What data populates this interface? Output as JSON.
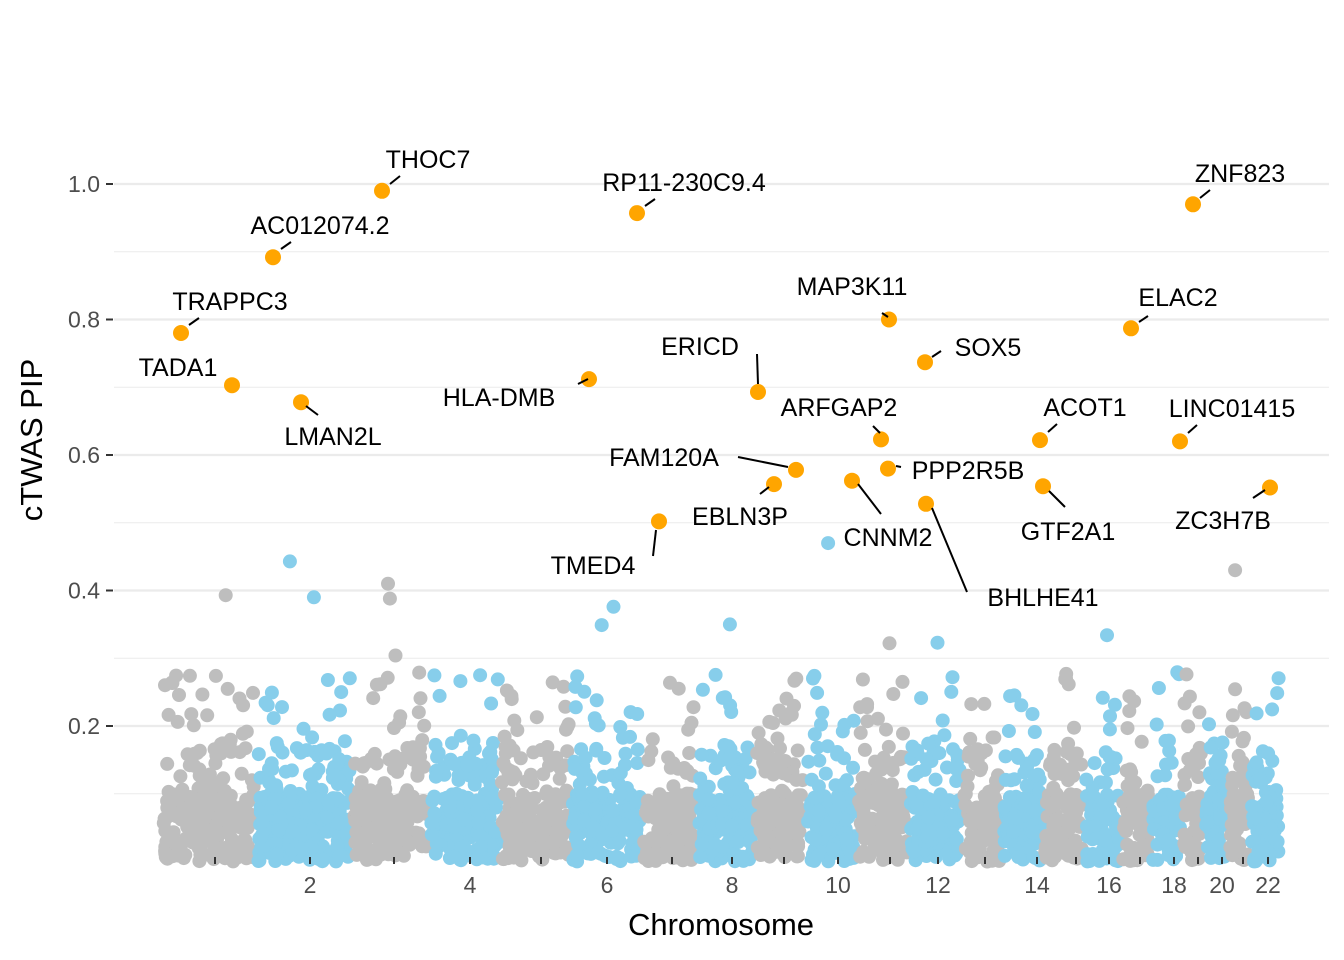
{
  "chart_data": {
    "type": "scatter",
    "title": "",
    "xlabel": "Chromosome",
    "ylabel": "cTWAS PIP",
    "ylim": [
      0,
      1.0
    ],
    "y_ticks": [
      0.2,
      0.4,
      0.6,
      0.8,
      1.0
    ],
    "y_tick_labels": [
      "0.2",
      "0.4",
      "0.6",
      "0.8",
      "1.0"
    ],
    "x_tick_labels": [
      "",
      "2",
      "",
      "4",
      "",
      "6",
      "",
      "8",
      "",
      "10",
      "",
      "12",
      "",
      "14",
      "",
      "16",
      "",
      "18",
      "",
      "20",
      "",
      "22"
    ],
    "grid": true,
    "legend": "none",
    "colors": {
      "odd_chromosome": "#bebebe",
      "even_chromosome": "#87ceeb",
      "highlighted": "#ffa500"
    },
    "chromosomes": [
      1,
      2,
      3,
      4,
      5,
      6,
      7,
      8,
      9,
      10,
      11,
      12,
      13,
      14,
      15,
      16,
      17,
      18,
      19,
      20,
      21,
      22
    ],
    "highlighted_genes": [
      {
        "gene": "THOC7",
        "chr": 3,
        "pip": 0.99
      },
      {
        "gene": "RP11-230C9.4",
        "chr": 6,
        "pip": 0.957
      },
      {
        "gene": "ZNF823",
        "chr": 19,
        "pip": 0.97
      },
      {
        "gene": "AC012074.2",
        "chr": 2,
        "pip": 0.892
      },
      {
        "gene": "TRAPPC3",
        "chr": 1,
        "pip": 0.78
      },
      {
        "gene": "TADA1",
        "chr": 1,
        "pip": 0.703
      },
      {
        "gene": "LMAN2L",
        "chr": 2,
        "pip": 0.678
      },
      {
        "gene": "HLA-DMB",
        "chr": 6,
        "pip": 0.712
      },
      {
        "gene": "ERICD",
        "chr": 8,
        "pip": 0.693
      },
      {
        "gene": "MAP3K11",
        "chr": 11,
        "pip": 0.8
      },
      {
        "gene": "SOX5",
        "chr": 12,
        "pip": 0.737
      },
      {
        "gene": "ELAC2",
        "chr": 17,
        "pip": 0.787
      },
      {
        "gene": "ARFGAP2",
        "chr": 11,
        "pip": 0.623
      },
      {
        "gene": "ACOT1",
        "chr": 14,
        "pip": 0.622
      },
      {
        "gene": "LINC01415",
        "chr": 18,
        "pip": 0.62
      },
      {
        "gene": "FAM120A",
        "chr": 9,
        "pip": 0.578
      },
      {
        "gene": "PPP2R5B",
        "chr": 11,
        "pip": 0.58
      },
      {
        "gene": "EBLN3P",
        "chr": 9,
        "pip": 0.557
      },
      {
        "gene": "CNNM2",
        "chr": 10,
        "pip": 0.562
      },
      {
        "gene": "GTF2A1",
        "chr": 14,
        "pip": 0.554
      },
      {
        "gene": "ZC3H7B",
        "chr": 22,
        "pip": 0.552
      },
      {
        "gene": "BHLHE41",
        "chr": 12,
        "pip": 0.528
      },
      {
        "gene": "TMED4",
        "chr": 7,
        "pip": 0.502
      }
    ],
    "notable_background_points": [
      {
        "chr": 2,
        "pip": 0.443
      },
      {
        "chr": 3,
        "pip": 0.41
      },
      {
        "chr": 3,
        "pip": 0.388
      },
      {
        "chr": 1,
        "pip": 0.393
      },
      {
        "chr": 2,
        "pip": 0.39
      },
      {
        "chr": 6,
        "pip": 0.376
      },
      {
        "chr": 6,
        "pip": 0.349
      },
      {
        "chr": 8,
        "pip": 0.35
      },
      {
        "chr": 10,
        "pip": 0.47
      },
      {
        "chr": 21,
        "pip": 0.43
      },
      {
        "chr": 16,
        "pip": 0.334
      },
      {
        "chr": 12,
        "pip": 0.323
      },
      {
        "chr": 11,
        "pip": 0.322
      },
      {
        "chr": 3,
        "pip": 0.304
      }
    ]
  }
}
